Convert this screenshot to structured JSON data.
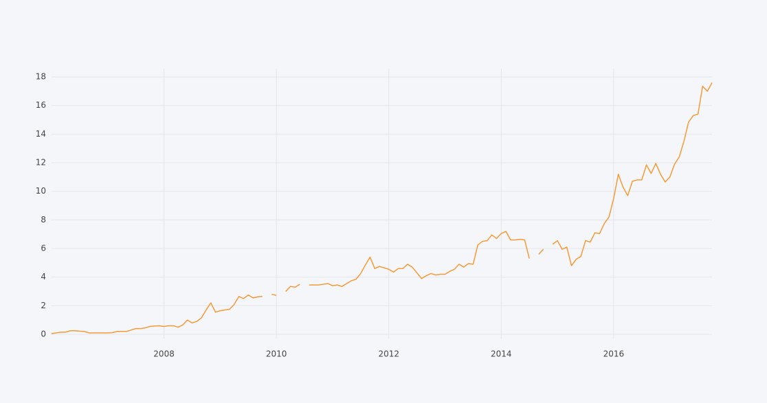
{
  "chart_data": {
    "type": "line",
    "x": [
      "2006-01",
      "2006-02",
      "2006-03",
      "2006-04",
      "2006-05",
      "2006-06",
      "2006-07",
      "2006-08",
      "2006-09",
      "2006-10",
      "2006-11",
      "2006-12",
      "2007-01",
      "2007-02",
      "2007-03",
      "2007-04",
      "2007-05",
      "2007-06",
      "2007-07",
      "2007-08",
      "2007-09",
      "2007-10",
      "2007-11",
      "2007-12",
      "2008-01",
      "2008-02",
      "2008-03",
      "2008-04",
      "2008-05",
      "2008-06",
      "2008-07",
      "2008-08",
      "2008-09",
      "2008-10",
      "2008-11",
      "2008-12",
      "2009-01",
      "2009-02",
      "2009-03",
      "2009-04",
      "2009-05",
      "2009-06",
      "2009-07",
      "2009-08",
      "2009-09",
      "2009-10",
      "2009-11",
      "2009-12",
      "2010-01",
      "2010-02",
      "2010-03",
      "2010-04",
      "2010-05",
      "2010-06",
      "2010-07",
      "2010-08",
      "2010-09",
      "2010-10",
      "2010-11",
      "2010-12",
      "2011-01",
      "2011-02",
      "2011-03",
      "2011-04",
      "2011-05",
      "2011-06",
      "2011-07",
      "2011-08",
      "2011-09",
      "2011-10",
      "2011-11",
      "2011-12",
      "2012-01",
      "2012-02",
      "2012-03",
      "2012-04",
      "2012-05",
      "2012-06",
      "2012-07",
      "2012-08",
      "2012-09",
      "2012-10",
      "2012-11",
      "2012-12",
      "2013-01",
      "2013-02",
      "2013-03",
      "2013-04",
      "2013-05",
      "2013-06",
      "2013-07",
      "2013-08",
      "2013-09",
      "2013-10",
      "2013-11",
      "2013-12",
      "2014-01",
      "2014-02",
      "2014-03",
      "2014-04",
      "2014-05",
      "2014-06",
      "2014-07",
      "2014-08",
      "2014-09",
      "2014-10",
      "2014-11",
      "2014-12",
      "2015-01",
      "2015-02",
      "2015-03",
      "2015-04",
      "2015-05",
      "2015-06",
      "2015-07",
      "2015-08",
      "2015-09",
      "2015-10",
      "2015-11",
      "2015-12",
      "2016-01",
      "2016-02",
      "2016-03",
      "2016-04",
      "2016-05",
      "2016-06",
      "2016-07",
      "2016-08",
      "2016-09",
      "2016-10",
      "2016-11",
      "2016-12",
      "2017-01",
      "2017-02",
      "2017-03",
      "2017-04",
      "2017-05",
      "2017-06",
      "2017-07",
      "2017-08",
      "2017-09",
      "2017-10"
    ],
    "values": [
      0.05,
      0.1,
      0.15,
      0.15,
      0.25,
      0.25,
      0.22,
      0.2,
      0.1,
      0.1,
      0.1,
      0.1,
      0.1,
      0.12,
      0.2,
      0.2,
      0.2,
      0.3,
      0.4,
      0.4,
      0.45,
      0.55,
      0.58,
      0.6,
      0.55,
      0.6,
      0.6,
      0.5,
      0.65,
      1.0,
      0.8,
      0.9,
      1.15,
      1.7,
      2.2,
      1.55,
      1.65,
      1.7,
      1.75,
      2.1,
      2.65,
      2.5,
      2.75,
      2.55,
      2.62,
      2.65,
      null,
      2.8,
      2.72,
      null,
      3.0,
      3.35,
      3.3,
      3.5,
      null,
      3.45,
      3.45,
      3.45,
      3.5,
      3.55,
      3.4,
      3.45,
      3.35,
      3.55,
      3.75,
      3.85,
      4.25,
      4.85,
      5.4,
      4.6,
      4.75,
      4.65,
      4.55,
      4.35,
      4.6,
      4.6,
      4.9,
      4.7,
      4.3,
      3.9,
      4.1,
      4.25,
      4.15,
      4.2,
      4.2,
      4.4,
      4.55,
      4.9,
      4.7,
      4.95,
      4.9,
      6.25,
      6.5,
      6.55,
      6.95,
      6.7,
      7.05,
      7.2,
      6.6,
      6.6,
      6.65,
      6.6,
      5.3,
      null,
      5.6,
      5.95,
      null,
      6.3,
      6.55,
      5.95,
      6.1,
      4.8,
      5.25,
      5.45,
      6.55,
      6.45,
      7.1,
      7.05,
      7.75,
      8.2,
      9.5,
      11.2,
      10.3,
      9.7,
      10.7,
      10.8,
      10.8,
      11.85,
      11.25,
      11.95,
      11.2,
      10.65,
      11.0,
      11.9,
      12.4,
      13.5,
      14.85,
      15.3,
      15.4,
      17.35,
      17.0,
      17.6
    ],
    "color": "#f59a37",
    "xlim": [
      "2006-01",
      "2017-10"
    ],
    "xticks": [
      {
        "value": "2008-01",
        "label": "2008"
      },
      {
        "value": "2010-01",
        "label": "2010"
      },
      {
        "value": "2012-01",
        "label": "2012"
      },
      {
        "value": "2014-01",
        "label": "2014"
      },
      {
        "value": "2016-01",
        "label": "2016"
      }
    ],
    "ylim": [
      -0.29,
      18.58
    ],
    "yticks": [
      0,
      2,
      4,
      6,
      8,
      10,
      12,
      14,
      16,
      18
    ],
    "grid": true
  }
}
